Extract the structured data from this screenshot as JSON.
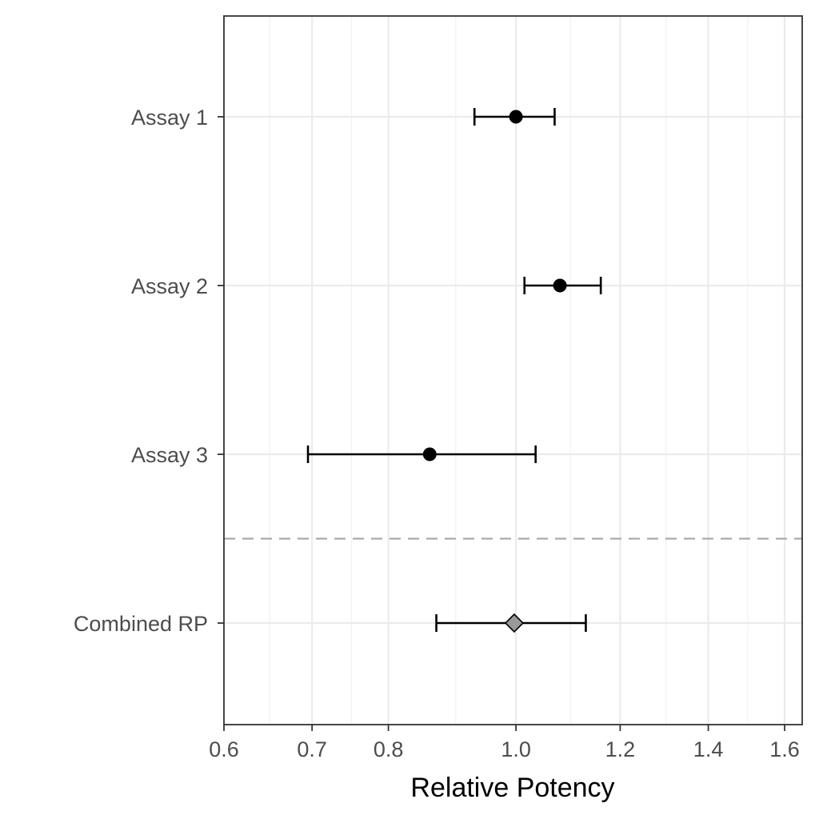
{
  "chart_data": {
    "type": "forest",
    "xlabel": "Relative Potency",
    "ylabel": "",
    "x_scale": "log",
    "xlim": [
      0.6,
      1.65
    ],
    "x_ticks": [
      0.6,
      0.7,
      0.8,
      1.0,
      1.2,
      1.4,
      1.6
    ],
    "x_tick_labels": [
      "0.6",
      "0.7",
      "0.8",
      "1.0",
      "1.2",
      "1.4",
      "1.6"
    ],
    "x_minor_gridlines": [
      0.65,
      0.75,
      0.9,
      1.1,
      1.3,
      1.5
    ],
    "grid": true,
    "categories": [
      "Assay 1",
      "Assay 2",
      "Assay 3",
      "Combined RP"
    ],
    "points": [
      {
        "label": "Assay 1",
        "estimate": 1.0,
        "lower": 0.93,
        "upper": 1.07,
        "marker": "circle",
        "color": "#000000"
      },
      {
        "label": "Assay 2",
        "estimate": 1.08,
        "lower": 1.015,
        "upper": 1.16,
        "marker": "circle",
        "color": "#000000"
      },
      {
        "label": "Assay 3",
        "estimate": 0.86,
        "lower": 0.695,
        "upper": 1.035,
        "marker": "circle",
        "color": "#000000"
      },
      {
        "label": "Combined RP",
        "estimate": 0.997,
        "lower": 0.87,
        "upper": 1.13,
        "marker": "diamond",
        "color": "#999999"
      }
    ],
    "separator": {
      "style": "dashed",
      "color": "#aaaaaa",
      "between": [
        "Assay 3",
        "Combined RP"
      ]
    }
  }
}
